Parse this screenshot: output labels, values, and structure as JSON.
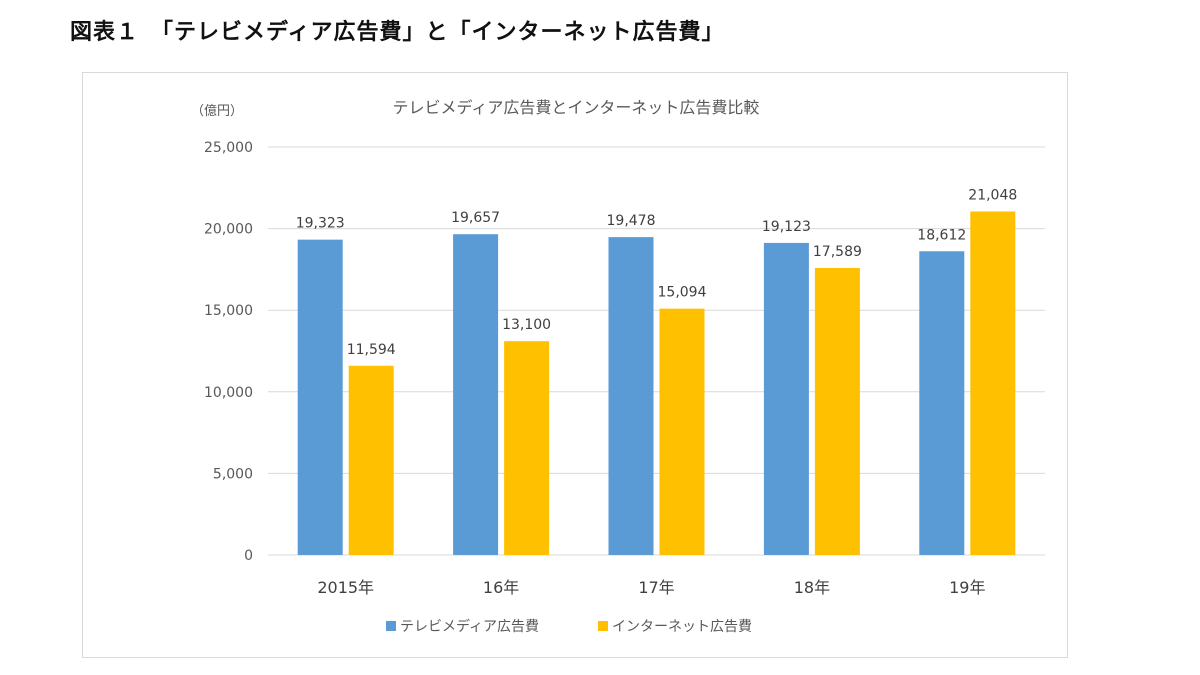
{
  "page": {
    "title": "図表１　「テレビメディア広告費」と「インターネット広告費」"
  },
  "chart_data": {
    "type": "bar",
    "title": "テレビメディア広告費とインターネット広告費比較",
    "unit": "（億円）",
    "categories": [
      "2015年",
      "16年",
      "17年",
      "18年",
      "19年"
    ],
    "series": [
      {
        "name": "テレビメディア広告費",
        "color": "#5B9BD5",
        "values": [
          19323,
          19657,
          19478,
          19123,
          18612
        ]
      },
      {
        "name": "インターネット広告費",
        "color": "#FFC000",
        "values": [
          11594,
          13100,
          15094,
          17589,
          21048
        ]
      }
    ],
    "ylim": [
      0,
      25000
    ],
    "yticks": [
      0,
      5000,
      10000,
      15000,
      20000,
      25000
    ],
    "ytick_labels": [
      "0",
      "5,000",
      "10,000",
      "15,000",
      "20,000",
      "25,000"
    ],
    "grid": true,
    "legend": "bottom"
  }
}
